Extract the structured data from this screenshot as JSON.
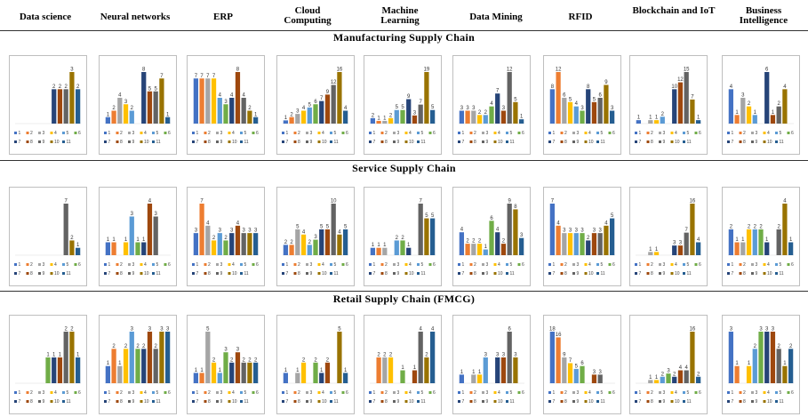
{
  "columns": [
    "Data science",
    "Neural networks",
    "ERP",
    "Cloud Computing",
    "Machine Learning",
    "Data Mining",
    "RFID",
    "Blockchain and IoT",
    "Business Intelligence"
  ],
  "sections": [
    "Manufacturing Supply Chain",
    "Service Supply Chain",
    "Retail Supply Chain (FMCG)"
  ],
  "colors": [
    "#4472C4",
    "#ED7D31",
    "#A5A5A5",
    "#FFC000",
    "#5B9BD5",
    "#70AD47",
    "#264478",
    "#9E480E",
    "#636363",
    "#997300",
    "#255E91"
  ],
  "chart_data": [
    {
      "type": "bar",
      "section": "Manufacturing Supply Chain",
      "panel": "Data science",
      "categories": [
        "1",
        "2",
        "3",
        "4",
        "5",
        "6",
        "7",
        "8",
        "9",
        "10",
        "11"
      ],
      "values": [
        0,
        0,
        0,
        0,
        0,
        0,
        2,
        2,
        2,
        3,
        2
      ]
    },
    {
      "type": "bar",
      "section": "Manufacturing Supply Chain",
      "panel": "Neural networks",
      "categories": [
        "1",
        "2",
        "3",
        "4",
        "5",
        "6",
        "7",
        "8",
        "9",
        "10",
        "11"
      ],
      "values": [
        1,
        2,
        4,
        3,
        2,
        0,
        8,
        5,
        5,
        7,
        1
      ]
    },
    {
      "type": "bar",
      "section": "Manufacturing Supply Chain",
      "panel": "ERP",
      "categories": [
        "1",
        "2",
        "3",
        "4",
        "5",
        "6",
        "7",
        "8",
        "9",
        "10",
        "11"
      ],
      "values": [
        7,
        7,
        7,
        7,
        4,
        3,
        4,
        8,
        4,
        2,
        1
      ]
    },
    {
      "type": "bar",
      "section": "Manufacturing Supply Chain",
      "panel": "Cloud Computing",
      "categories": [
        "1",
        "2",
        "3",
        "4",
        "5",
        "6",
        "7",
        "8",
        "9",
        "10",
        "11"
      ],
      "values": [
        1,
        2,
        3,
        4,
        5,
        6,
        7,
        9,
        12,
        16,
        4
      ]
    },
    {
      "type": "bar",
      "section": "Manufacturing Supply Chain",
      "panel": "Machine Learning",
      "categories": [
        "1",
        "2",
        "3",
        "4",
        "5",
        "6",
        "7",
        "8",
        "9",
        "10",
        "11"
      ],
      "values": [
        2,
        1,
        1,
        2,
        5,
        5,
        9,
        3,
        7,
        19,
        5
      ]
    },
    {
      "type": "bar",
      "section": "Manufacturing Supply Chain",
      "panel": "Data Mining",
      "categories": [
        "1",
        "2",
        "3",
        "4",
        "5",
        "6",
        "7",
        "8",
        "9",
        "10",
        "11"
      ],
      "values": [
        3,
        3,
        3,
        2,
        2,
        4,
        7,
        3,
        12,
        5,
        1
      ]
    },
    {
      "type": "bar",
      "section": "Manufacturing Supply Chain",
      "panel": "RFID",
      "categories": [
        "1",
        "2",
        "3",
        "4",
        "5",
        "6",
        "7",
        "8",
        "9",
        "10",
        "11"
      ],
      "values": [
        8,
        12,
        6,
        5,
        4,
        3,
        8,
        5,
        6,
        9,
        3
      ]
    },
    {
      "type": "bar",
      "section": "Manufacturing Supply Chain",
      "panel": "Blockchain and IoT",
      "categories": [
        "1",
        "2",
        "3",
        "4",
        "5",
        "6",
        "7",
        "8",
        "9",
        "10",
        "11"
      ],
      "values": [
        1,
        0,
        1,
        1,
        2,
        0,
        10,
        12,
        15,
        7,
        1
      ]
    },
    {
      "type": "bar",
      "section": "Manufacturing Supply Chain",
      "panel": "Business Intelligence",
      "categories": [
        "1",
        "2",
        "3",
        "4",
        "5",
        "6",
        "7",
        "8",
        "9",
        "10",
        "11"
      ],
      "values": [
        4,
        1,
        3,
        2,
        1,
        0,
        6,
        1,
        2,
        4,
        0
      ]
    },
    {
      "type": "bar",
      "section": "Service Supply Chain",
      "panel": "Data science",
      "categories": [
        "1",
        "2",
        "3",
        "4",
        "5",
        "6",
        "7",
        "8",
        "9",
        "10",
        "11"
      ],
      "values": [
        0,
        0,
        0,
        0,
        0,
        0,
        0,
        0,
        7,
        2,
        1
      ]
    },
    {
      "type": "bar",
      "section": "Service Supply Chain",
      "panel": "Neural networks",
      "categories": [
        "1",
        "2",
        "3",
        "4",
        "5",
        "6",
        "7",
        "8",
        "9",
        "10",
        "11"
      ],
      "values": [
        1,
        1,
        0,
        1,
        3,
        1,
        1,
        4,
        3,
        0,
        0
      ]
    },
    {
      "type": "bar",
      "section": "Service Supply Chain",
      "panel": "ERP",
      "categories": [
        "1",
        "2",
        "3",
        "4",
        "5",
        "6",
        "7",
        "8",
        "9",
        "10",
        "11"
      ],
      "values": [
        3,
        7,
        4,
        2,
        3,
        2,
        3,
        4,
        3,
        3,
        3
      ]
    },
    {
      "type": "bar",
      "section": "Service Supply Chain",
      "panel": "Cloud Computing",
      "categories": [
        "1",
        "2",
        "3",
        "4",
        "5",
        "6",
        "7",
        "8",
        "9",
        "10",
        "11"
      ],
      "values": [
        2,
        2,
        5,
        4,
        2,
        3,
        5,
        5,
        10,
        4,
        5
      ]
    },
    {
      "type": "bar",
      "section": "Service Supply Chain",
      "panel": "Machine Learning",
      "categories": [
        "1",
        "2",
        "3",
        "4",
        "5",
        "6",
        "7",
        "8",
        "9",
        "10",
        "11"
      ],
      "values": [
        1,
        1,
        1,
        0,
        2,
        2,
        1,
        0,
        7,
        5,
        5
      ]
    },
    {
      "type": "bar",
      "section": "Service Supply Chain",
      "panel": "Data Mining",
      "categories": [
        "1",
        "2",
        "3",
        "4",
        "5",
        "6",
        "7",
        "8",
        "9",
        "10",
        "11"
      ],
      "values": [
        4,
        2,
        2,
        2,
        1,
        6,
        4,
        2,
        9,
        8,
        3
      ]
    },
    {
      "type": "bar",
      "section": "Service Supply Chain",
      "panel": "RFID",
      "categories": [
        "1",
        "2",
        "3",
        "4",
        "5",
        "6",
        "7",
        "8",
        "9",
        "10",
        "11"
      ],
      "values": [
        7,
        4,
        3,
        3,
        3,
        3,
        2,
        3,
        3,
        4,
        5
      ]
    },
    {
      "type": "bar",
      "section": "Service Supply Chain",
      "panel": "Blockchain and IoT",
      "categories": [
        "1",
        "2",
        "3",
        "4",
        "5",
        "6",
        "7",
        "8",
        "9",
        "10",
        "11"
      ],
      "values": [
        0,
        0,
        1,
        1,
        0,
        0,
        3,
        3,
        7,
        16,
        4
      ]
    },
    {
      "type": "bar",
      "section": "Service Supply Chain",
      "panel": "Business Intelligence",
      "categories": [
        "1",
        "2",
        "3",
        "4",
        "5",
        "6",
        "7",
        "8",
        "9",
        "10",
        "11"
      ],
      "values": [
        2,
        1,
        1,
        2,
        2,
        2,
        1,
        0,
        2,
        4,
        1
      ]
    },
    {
      "type": "bar",
      "section": "Retail Supply Chain (FMCG)",
      "panel": "Data science",
      "categories": [
        "1",
        "2",
        "3",
        "4",
        "5",
        "6",
        "7",
        "8",
        "9",
        "10",
        "11"
      ],
      "values": [
        0,
        0,
        0,
        0,
        0,
        1,
        1,
        1,
        2,
        2,
        1
      ]
    },
    {
      "type": "bar",
      "section": "Retail Supply Chain (FMCG)",
      "panel": "Neural networks",
      "categories": [
        "1",
        "2",
        "3",
        "4",
        "5",
        "6",
        "7",
        "8",
        "9",
        "10",
        "11"
      ],
      "values": [
        1,
        2,
        1,
        2,
        3,
        2,
        2,
        3,
        2,
        3,
        3
      ]
    },
    {
      "type": "bar",
      "section": "Retail Supply Chain (FMCG)",
      "panel": "ERP",
      "categories": [
        "1",
        "2",
        "3",
        "4",
        "5",
        "6",
        "7",
        "8",
        "9",
        "10",
        "11"
      ],
      "values": [
        1,
        1,
        5,
        2,
        1,
        3,
        2,
        3,
        2,
        2,
        2
      ]
    },
    {
      "type": "bar",
      "section": "Retail Supply Chain (FMCG)",
      "panel": "Cloud Computing",
      "categories": [
        "1",
        "2",
        "3",
        "4",
        "5",
        "6",
        "7",
        "8",
        "9",
        "10",
        "11"
      ],
      "values": [
        1,
        0,
        1,
        2,
        0,
        2,
        1,
        2,
        0,
        5,
        1
      ]
    },
    {
      "type": "bar",
      "section": "Retail Supply Chain (FMCG)",
      "panel": "Machine Learning",
      "categories": [
        "1",
        "2",
        "3",
        "4",
        "5",
        "6",
        "7",
        "8",
        "9",
        "10",
        "11"
      ],
      "values": [
        0,
        2,
        2,
        2,
        0,
        1,
        0,
        1,
        4,
        2,
        4
      ]
    },
    {
      "type": "bar",
      "section": "Retail Supply Chain (FMCG)",
      "panel": "Data Mining",
      "categories": [
        "1",
        "2",
        "3",
        "4",
        "5",
        "6",
        "7",
        "8",
        "9",
        "10",
        "11"
      ],
      "values": [
        1,
        0,
        1,
        1,
        3,
        0,
        3,
        3,
        6,
        3,
        0
      ]
    },
    {
      "type": "bar",
      "section": "Retail Supply Chain (FMCG)",
      "panel": "RFID",
      "categories": [
        "1",
        "2",
        "3",
        "4",
        "5",
        "6",
        "7",
        "8",
        "9",
        "10",
        "11"
      ],
      "values": [
        18,
        16,
        9,
        7,
        5,
        6,
        0,
        3,
        3,
        0,
        0
      ]
    },
    {
      "type": "bar",
      "section": "Retail Supply Chain (FMCG)",
      "panel": "Blockchain and IoT",
      "categories": [
        "1",
        "2",
        "3",
        "4",
        "5",
        "6",
        "7",
        "8",
        "9",
        "10",
        "11"
      ],
      "values": [
        0,
        0,
        1,
        1,
        2,
        3,
        2,
        4,
        4,
        16,
        2
      ]
    },
    {
      "type": "bar",
      "section": "Retail Supply Chain (FMCG)",
      "panel": "Business Intelligence",
      "categories": [
        "1",
        "2",
        "3",
        "4",
        "5",
        "6",
        "7",
        "8",
        "9",
        "10",
        "11"
      ],
      "values": [
        3,
        1,
        0,
        1,
        2,
        3,
        3,
        3,
        2,
        1,
        2
      ]
    }
  ]
}
